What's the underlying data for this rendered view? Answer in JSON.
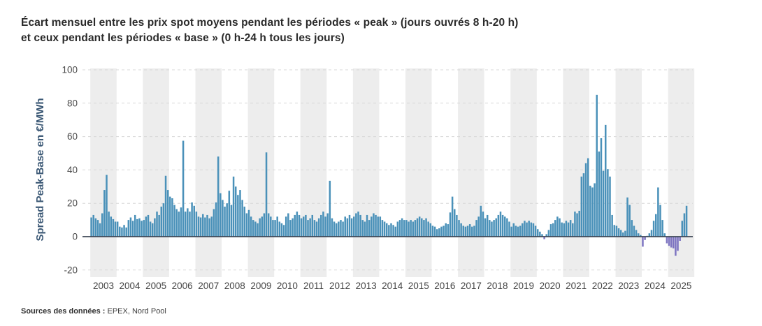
{
  "title": {
    "line1": "Écart mensuel entre les prix spot moyens pendant les périodes « peak » (jours ouvrés 8 h-20 h)",
    "line2": "et ceux pendant les périodes « base » (0 h-24 h tous les jours)"
  },
  "footer": {
    "label": "Sources des données :",
    "value": " EPEX, Nord Pool"
  },
  "chart_data": {
    "type": "bar",
    "title": "Écart mensuel entre les prix spot moyens pendant les périodes « peak » et ceux pendant les périodes « base »",
    "ylabel": "Spread Peak-Base en €/MWh",
    "xlabel": "",
    "ylim": [
      -20,
      100
    ],
    "yticks": [
      100,
      80,
      60,
      40,
      20,
      0,
      -20
    ],
    "grid": "horizontal-dashed",
    "legend": "none",
    "x_first_month": "2003-01",
    "x_last_month": "2025-09",
    "x_tick_years": [
      2003,
      2004,
      2005,
      2006,
      2007,
      2008,
      2009,
      2010,
      2011,
      2012,
      2013,
      2014,
      2015,
      2016,
      2017,
      2018,
      2019,
      2020,
      2021,
      2022,
      2023,
      2024,
      2025
    ],
    "shaded_years": "odd years have light grey background band",
    "colors": {
      "positive_bar": "#4a91b9",
      "negative_bar": "#7d74c1",
      "year_band": "#ededed",
      "gridline": "#d8d8d8",
      "zero_line": "#3f4857",
      "tick_label": "#4a4a4a",
      "axis_title": "#3b5875"
    },
    "series": [
      {
        "name": "Spread Peak-Base mensuel (€/MWh)",
        "values_by_year": {
          "2003": [
            11.5,
            13,
            11,
            10,
            8,
            14,
            28,
            37,
            15,
            12,
            10.5,
            9
          ],
          "2004": [
            9,
            6,
            5.5,
            7,
            5.5,
            10,
            11.5,
            9.5,
            13,
            10.5,
            11,
            9.5
          ],
          "2005": [
            10,
            12,
            13,
            9,
            8,
            11,
            15,
            13,
            18,
            20,
            36.5,
            28
          ],
          "2006": [
            24,
            23,
            19,
            16.5,
            15,
            17.5,
            57.5,
            15,
            17,
            15,
            20.5,
            18.5
          ],
          "2007": [
            15,
            12,
            11.5,
            13.5,
            11.5,
            13,
            11,
            12,
            16.5,
            20.5,
            48,
            26
          ],
          "2008": [
            22,
            18,
            20,
            27.5,
            19,
            36,
            30,
            25,
            28,
            22,
            18,
            14
          ],
          "2009": [
            16,
            12,
            10,
            9,
            8,
            11,
            12,
            14,
            50.5,
            14,
            12,
            10
          ],
          "2010": [
            10,
            12,
            9,
            8,
            7,
            12,
            14,
            10,
            11,
            13,
            15,
            13
          ],
          "2011": [
            11,
            12,
            13,
            10,
            11,
            13,
            10,
            9,
            11,
            13,
            15,
            12
          ],
          "2012": [
            14,
            33.5,
            11,
            9,
            8,
            9,
            10,
            9,
            12,
            11,
            13,
            11
          ],
          "2013": [
            12,
            14,
            15,
            13,
            10,
            9,
            13,
            10,
            12,
            14,
            13,
            12
          ],
          "2014": [
            12,
            10,
            9,
            8,
            7,
            8,
            7,
            6,
            9,
            10,
            11,
            10
          ],
          "2015": [
            10,
            9,
            10,
            9,
            10,
            11,
            12,
            11,
            10,
            11,
            9,
            8
          ],
          "2016": [
            6.5,
            6,
            4.5,
            5,
            6,
            6.5,
            8,
            7.5,
            14.5,
            24,
            16.5,
            13
          ],
          "2017": [
            10,
            8,
            6.5,
            6,
            6.5,
            7.5,
            6,
            6.5,
            10,
            12,
            18.5,
            15
          ],
          "2018": [
            11,
            13,
            10,
            9,
            10,
            11,
            13,
            15,
            13,
            12,
            11,
            9
          ],
          "2019": [
            6,
            8,
            6.5,
            6,
            6.5,
            8,
            9.5,
            8.5,
            9.5,
            8.5,
            8,
            6.5
          ],
          "2020": [
            4.5,
            3,
            1.5,
            -1.5,
            1.5,
            4,
            7.5,
            8,
            10,
            12,
            11,
            8.5
          ],
          "2021": [
            8,
            9.5,
            8.5,
            10,
            8,
            15,
            14,
            15.5,
            36,
            38,
            44,
            47
          ],
          "2022": [
            30.5,
            29.5,
            32,
            85,
            51,
            59,
            39.5,
            67,
            40.5,
            36,
            13,
            7
          ],
          "2023": [
            6.5,
            5,
            4,
            2.5,
            3.5,
            23.5,
            19,
            10,
            6.5,
            4,
            2,
            1
          ],
          "2024": [
            -6,
            -2,
            0.5,
            2,
            4,
            9.5,
            13.5,
            29.5,
            19,
            10,
            2,
            -4
          ],
          "2025": [
            -5.5,
            -6.5,
            -7,
            -11.5,
            -8.5,
            -2.5,
            9.5,
            14,
            18.5
          ]
        }
      }
    ]
  }
}
